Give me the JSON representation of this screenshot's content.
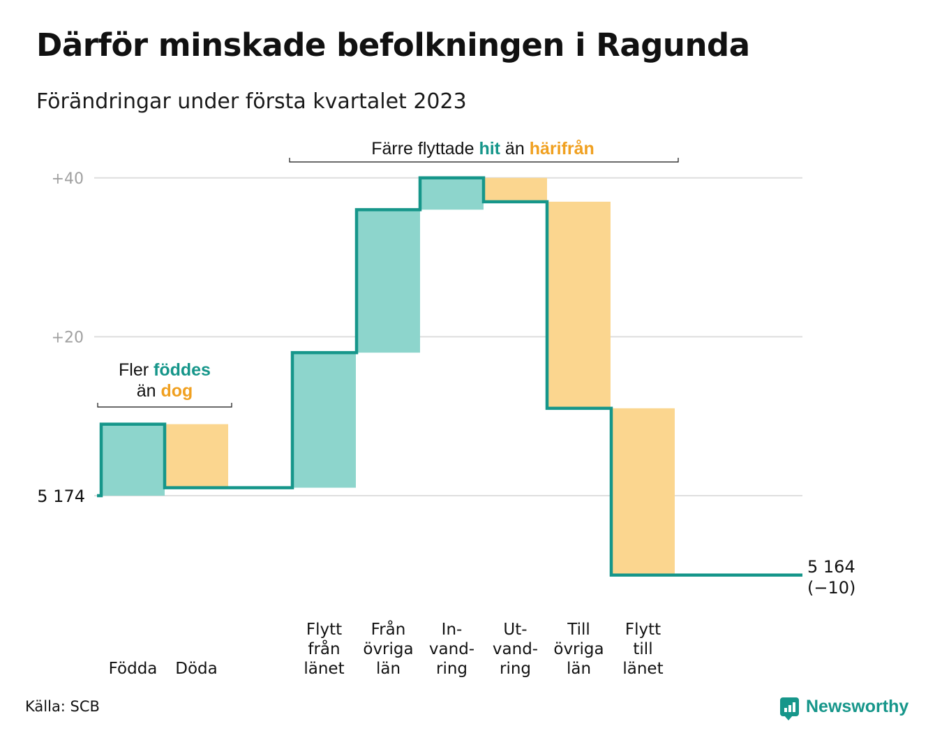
{
  "title": "Därför minskade befolkningen i Ragunda",
  "subtitle": "Förändringar under första kvartalet 2023",
  "source": "Källa: SCB",
  "brand": {
    "name": "Newsworthy",
    "icon": "bar-chart-icon"
  },
  "colors": {
    "increase_fill": "#8dd5cc",
    "decrease_fill": "#fbd68f",
    "line": "#16968a",
    "annotation_teal": "#16968a",
    "annotation_orange": "#f0a020",
    "grid": "#dedede",
    "tick_text": "#a0a0a0"
  },
  "chart_data": {
    "type": "waterfall",
    "start": {
      "value": 5174,
      "label": "5 174"
    },
    "end": {
      "value": 5164,
      "label": "5 164",
      "change_label": "(−10)"
    },
    "steps": [
      {
        "label": [
          "Födda"
        ],
        "change": 9,
        "direction": "increase"
      },
      {
        "label": [
          "Döda"
        ],
        "change": -8,
        "direction": "decrease"
      },
      {
        "label": [
          "Flytt",
          "från",
          "länet"
        ],
        "change": 17,
        "direction": "increase"
      },
      {
        "label": [
          "Från",
          "övriga",
          "län"
        ],
        "change": 18,
        "direction": "increase"
      },
      {
        "label": [
          "In-",
          "vand-",
          "ring"
        ],
        "change": 4,
        "direction": "increase"
      },
      {
        "label": [
          "Ut-",
          "vand-",
          "ring"
        ],
        "change": -3,
        "direction": "decrease"
      },
      {
        "label": [
          "Till",
          "övriga",
          "län"
        ],
        "change": -26,
        "direction": "decrease"
      },
      {
        "label": [
          "Flytt",
          "till",
          "länet"
        ],
        "change": -21,
        "direction": "decrease"
      }
    ],
    "y_ticks": [
      {
        "value": 20,
        "label": "+20"
      },
      {
        "value": 40,
        "label": "+40"
      }
    ],
    "ylim": [
      -12,
      40
    ],
    "grid": true,
    "annotations": [
      {
        "parts": [
          [
            {
              "text": "Fler ",
              "style": "plain"
            },
            {
              "text": "föddes",
              "style": "teal"
            }
          ],
          [
            {
              "text": "än ",
              "style": "plain"
            },
            {
              "text": "dog",
              "style": "orange"
            }
          ]
        ]
      },
      {
        "parts": [
          [
            {
              "text": "Färre flyttade ",
              "style": "plain"
            },
            {
              "text": "hit",
              "style": "teal"
            },
            {
              "text": " än ",
              "style": "plain"
            },
            {
              "text": "härifrån",
              "style": "orange"
            }
          ]
        ]
      }
    ]
  }
}
